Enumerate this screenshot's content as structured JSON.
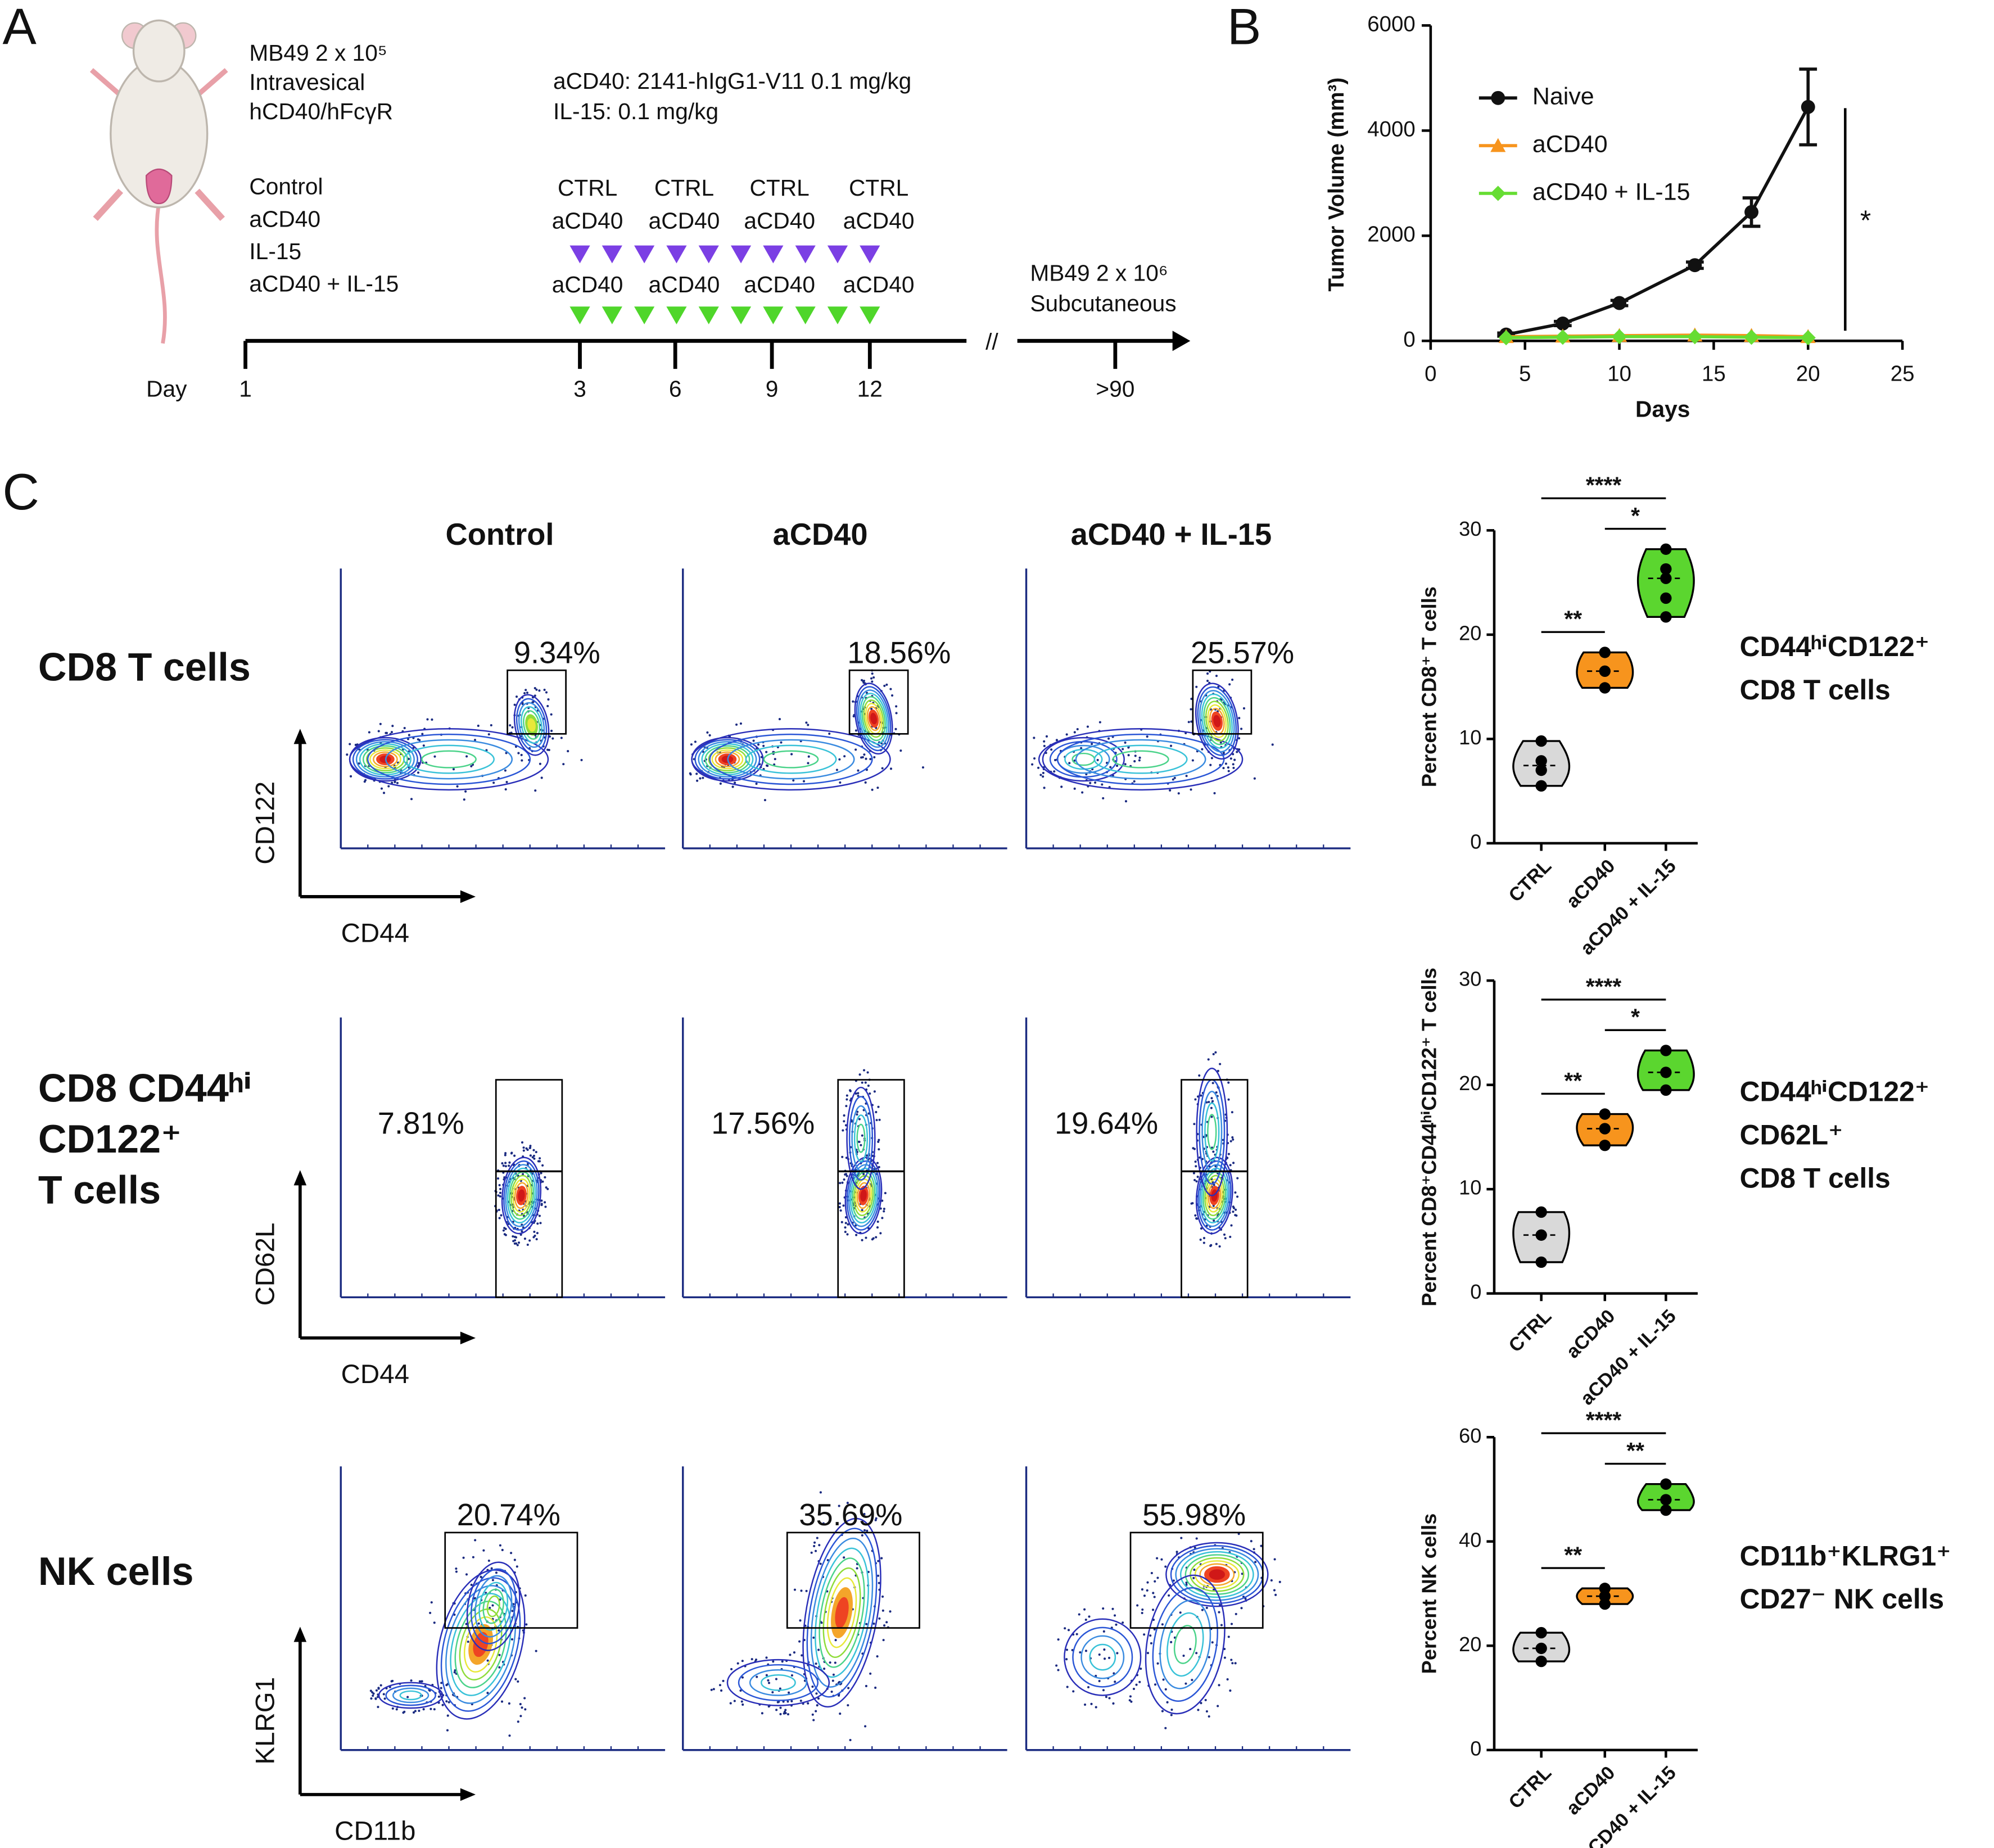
{
  "panel_labels": [
    "A",
    "B",
    "C"
  ],
  "protocol": {
    "tumor": [
      "MB49 2 x 10⁵",
      "Intravesical",
      "hCD40/hFcγR"
    ],
    "groups": [
      {
        "label": "Control",
        "color": "#111111"
      },
      {
        "label": "aCD40",
        "color": "#f7941d"
      },
      {
        "label": "IL-15",
        "color": "#7b3fe4"
      },
      {
        "label": "aCD40 + IL-15",
        "color": "#4fd62a"
      }
    ],
    "doses": [
      "aCD40: 2141-hIgG1-V11 0.1 mg/kg",
      "IL-15: 0.1 mg/kg"
    ],
    "schedule_rows": [
      {
        "labels": [
          "CTRL",
          "CTRL",
          "CTRL",
          "CTRL"
        ],
        "color": "#111111"
      },
      {
        "labels": [
          "aCD40",
          "aCD40",
          "aCD40",
          "aCD40"
        ],
        "color": "#f7941d",
        "marker_color": "#7b3fe4"
      },
      {
        "labels": [
          "aCD40",
          "aCD40",
          "aCD40",
          "aCD40"
        ],
        "color": "#4fd62a",
        "marker_color": "#4fd62a"
      }
    ],
    "rechallenge": [
      "MB49 2 x 10⁶",
      "Subcutaneous"
    ],
    "day_label": "Day",
    "days": [
      "1",
      "3",
      "6",
      "9",
      "12",
      ">90"
    ],
    "break": "//"
  },
  "chart_data": [
    {
      "type": "line",
      "x_label": "Days",
      "y_label": "Tumor Volume (mm³)",
      "x": [
        4,
        7,
        10,
        14,
        17,
        20
      ],
      "xlim": [
        0,
        25
      ],
      "xticks": [
        0,
        5,
        10,
        15,
        20,
        25
      ],
      "ylim": [
        0,
        6000
      ],
      "yticks": [
        0,
        2000,
        4000,
        6000
      ],
      "series": [
        {
          "name": "Naive",
          "color": "#111111",
          "marker": "circle",
          "values": [
            120,
            330,
            720,
            1440,
            2450,
            4450
          ],
          "errors": [
            30,
            40,
            50,
            60,
            270,
            720
          ]
        },
        {
          "name": "aCD40",
          "color": "#f7941d",
          "marker": "triangle",
          "values": [
            80,
            90,
            100,
            110,
            100,
            80
          ]
        },
        {
          "name": "aCD40 + IL-15",
          "color": "#66dd33",
          "marker": "diamond",
          "values": [
            60,
            70,
            80,
            80,
            70,
            60
          ]
        }
      ],
      "significance": "*"
    },
    {
      "type": "violin",
      "y_label": "Percent CD8⁺ T cells",
      "categories": [
        "CTRL",
        "aCD40",
        "aCD40 + IL-15"
      ],
      "colors": [
        "#d9d9d9",
        "#f7941d",
        "#5bd62f"
      ],
      "values": [
        [
          9.8,
          7.9,
          7.0,
          5.5
        ],
        [
          18.3,
          16.5,
          14.9
        ],
        [
          28.2,
          26.3,
          25.4,
          23.5,
          21.7
        ]
      ],
      "ylim": [
        0,
        30
      ],
      "yticks": [
        0,
        10,
        20,
        30
      ],
      "comparisons": [
        {
          "pair": [
            0,
            1
          ],
          "label": "**"
        },
        {
          "pair": [
            0,
            2
          ],
          "label": "****"
        },
        {
          "pair": [
            1,
            2
          ],
          "label": "*"
        }
      ],
      "annotation": [
        "CD44ʰⁱCD122⁺",
        "CD8 T cells"
      ]
    },
    {
      "type": "violin",
      "y_label": "Percent CD8⁺CD44ʰⁱCD122⁺ T cells",
      "categories": [
        "CTRL",
        "aCD40",
        "aCD40 + IL-15"
      ],
      "colors": [
        "#d9d9d9",
        "#f7941d",
        "#5bd62f"
      ],
      "values": [
        [
          7.8,
          5.6,
          3.0
        ],
        [
          17.2,
          15.8,
          14.2
        ],
        [
          23.3,
          21.2,
          19.5
        ]
      ],
      "ylim": [
        0,
        30
      ],
      "yticks": [
        0,
        10,
        20,
        30
      ],
      "comparisons": [
        {
          "pair": [
            0,
            1
          ],
          "label": "**"
        },
        {
          "pair": [
            0,
            2
          ],
          "label": "****"
        },
        {
          "pair": [
            1,
            2
          ],
          "label": "*"
        }
      ],
      "annotation": [
        "CD44ʰⁱCD122⁺",
        "CD62L⁺",
        "CD8 T cells"
      ]
    },
    {
      "type": "violin",
      "y_label": "Percent NK cells",
      "categories": [
        "CTRL",
        "aCD40",
        "aCD40 + IL-15"
      ],
      "colors": [
        "#d9d9d9",
        "#f7941d",
        "#5bd62f"
      ],
      "values": [
        [
          22.5,
          19.5,
          17.0
        ],
        [
          31.0,
          29.5,
          28.0
        ],
        [
          51.0,
          48.0,
          46.0
        ]
      ],
      "ylim": [
        0,
        60
      ],
      "yticks": [
        0,
        20,
        40,
        60
      ],
      "comparisons": [
        {
          "pair": [
            0,
            1
          ],
          "label": "**"
        },
        {
          "pair": [
            0,
            2
          ],
          "label": "****"
        },
        {
          "pair": [
            1,
            2
          ],
          "label": "**"
        }
      ],
      "annotation": [
        "CD11b⁺KLRG1⁺",
        "CD27⁻ NK cells"
      ]
    }
  ],
  "flow": {
    "columns": [
      {
        "label": "Control",
        "color": "#111111"
      },
      {
        "label": "aCD40",
        "color": "#f7941d"
      },
      {
        "label": "aCD40 + IL-15",
        "color": "#55e22b"
      }
    ],
    "rows": [
      {
        "label": [
          "CD8 T cells"
        ],
        "y_axis": "CD122",
        "x_axis": "CD44",
        "gates": [
          "9.34%",
          "18.56%",
          "25.57%"
        ]
      },
      {
        "label": [
          "CD8 CD44ʰⁱ",
          "CD122⁺",
          "T cells"
        ],
        "y_axis": "CD62L",
        "x_axis": "CD44",
        "gates": [
          "7.81%",
          "17.56%",
          "19.64%"
        ]
      },
      {
        "label": [
          "NK cells"
        ],
        "y_axis": "KLRG1",
        "x_axis": "CD11b",
        "gates": [
          "20.74%",
          "35.69%",
          "55.98%"
        ]
      }
    ]
  }
}
